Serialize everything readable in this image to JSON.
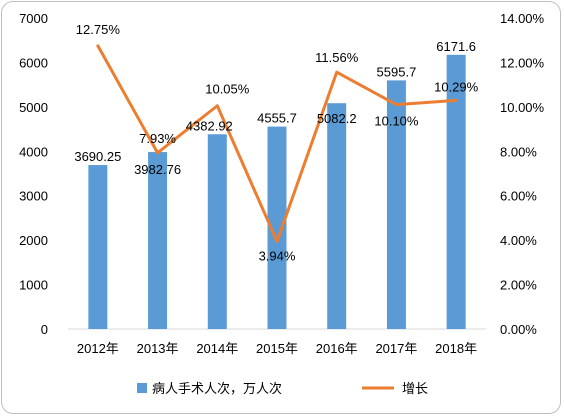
{
  "chart_data": {
    "type": "bar",
    "categories": [
      "2012年",
      "2013年",
      "2014年",
      "2015年",
      "2016年",
      "2017年",
      "2018年"
    ],
    "series": [
      {
        "name": "病人手术人次，万人次",
        "type": "bar",
        "axis": "left",
        "color": "#5b9bd5",
        "values": [
          3690.25,
          3982.76,
          4382.92,
          4555.7,
          5082.2,
          5595.7,
          6171.6
        ],
        "labels": [
          "3690.25",
          "3982.76",
          "4382.92",
          "4555.7",
          "5082.2",
          "5595.7",
          "6171.6"
        ]
      },
      {
        "name": "增长",
        "type": "line",
        "axis": "right",
        "color": "#ed7d31",
        "values": [
          12.75,
          7.93,
          10.05,
          3.94,
          11.56,
          10.1,
          10.29
        ],
        "labels": [
          "12.75%",
          "7.93%",
          "10.05%",
          "3.94%",
          "11.56%",
          "10.10%",
          "10.29%"
        ]
      }
    ],
    "y_left": {
      "min": 0,
      "max": 7000,
      "ticks": [
        "0",
        "1000",
        "2000",
        "3000",
        "4000",
        "5000",
        "6000",
        "7000"
      ]
    },
    "y_right": {
      "min": 0,
      "max": 14,
      "ticks": [
        "0.00%",
        "2.00%",
        "4.00%",
        "6.00%",
        "8.00%",
        "10.00%",
        "12.00%",
        "14.00%"
      ]
    },
    "grid": false,
    "legend": "bottom"
  }
}
